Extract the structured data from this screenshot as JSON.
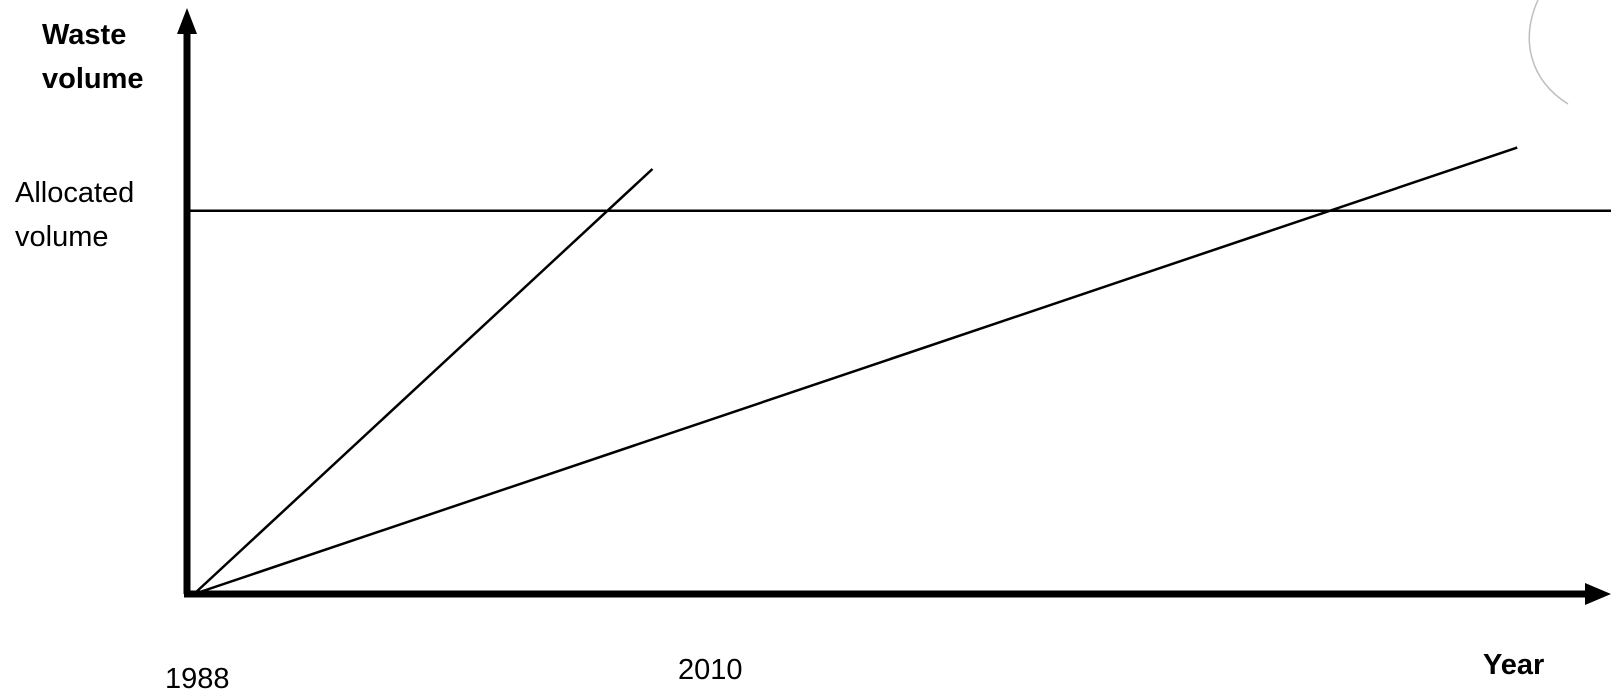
{
  "chart_data": {
    "type": "line",
    "title": "",
    "ylabel_lines": [
      "Waste",
      "volume"
    ],
    "xlabel": "Year",
    "x_ticks": [
      {
        "label": "1988",
        "value": 1988
      },
      {
        "label": "2010",
        "value": 2010
      }
    ],
    "reference_line": {
      "label_lines": [
        "Allocated",
        "volume"
      ],
      "value": 1.0
    },
    "series": [
      {
        "points": [
          [
            1988,
            0
          ],
          [
            2010,
            1.109
          ]
        ]
      },
      {
        "points": [
          [
            1988,
            0
          ],
          [
            2051.5,
            1.165
          ]
        ]
      }
    ],
    "xlim": [
      1988,
      2056
    ],
    "ylim": [
      0,
      1.55
    ],
    "grid": false,
    "legend": "none",
    "colors": {
      "ink": "#000000",
      "background": "#ffffff",
      "decoration": "#bfbfbf"
    }
  }
}
